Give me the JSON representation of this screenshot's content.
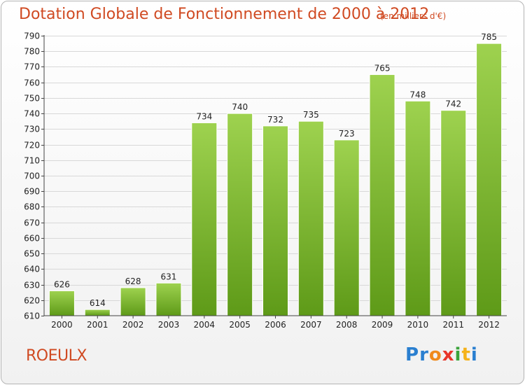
{
  "chart_data": {
    "type": "bar",
    "title": "Dotation Globale de Fonctionnement de 2000 à 2012",
    "subtitle": "(en milliers d'€)",
    "categories": [
      "2000",
      "2001",
      "2002",
      "2003",
      "2004",
      "2005",
      "2006",
      "2007",
      "2008",
      "2009",
      "2010",
      "2011",
      "2012"
    ],
    "values": [
      626,
      614,
      628,
      631,
      734,
      740,
      732,
      735,
      723,
      765,
      748,
      742,
      785
    ],
    "ylim": [
      610,
      790
    ],
    "ytick_step": 10,
    "grid": true,
    "bar_color": "#7cb82f"
  },
  "commune": "ROEULX",
  "logo": {
    "letters": [
      "P",
      "r",
      "o",
      "x",
      "i",
      "t",
      "i"
    ],
    "colors": [
      "#2a7fd0",
      "#2a7fd0",
      "#f08a1c",
      "#e8352a",
      "#3ba33b",
      "#f5b21a",
      "#2a7fd0"
    ]
  }
}
